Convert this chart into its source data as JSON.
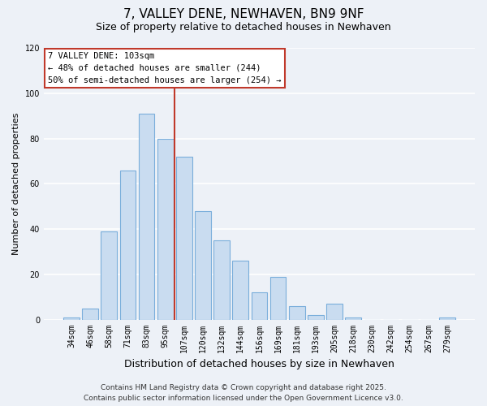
{
  "title": "7, VALLEY DENE, NEWHAVEN, BN9 9NF",
  "subtitle": "Size of property relative to detached houses in Newhaven",
  "xlabel": "Distribution of detached houses by size in Newhaven",
  "ylabel": "Number of detached properties",
  "categories": [
    "34sqm",
    "46sqm",
    "58sqm",
    "71sqm",
    "83sqm",
    "95sqm",
    "107sqm",
    "120sqm",
    "132sqm",
    "144sqm",
    "156sqm",
    "169sqm",
    "181sqm",
    "193sqm",
    "205sqm",
    "218sqm",
    "230sqm",
    "242sqm",
    "254sqm",
    "267sqm",
    "279sqm"
  ],
  "values": [
    1,
    5,
    39,
    66,
    91,
    80,
    72,
    48,
    35,
    26,
    12,
    19,
    6,
    2,
    7,
    1,
    0,
    0,
    0,
    0,
    1
  ],
  "bar_color": "#c9dcf0",
  "bar_edge_color": "#7aaedb",
  "highlight_index": 5,
  "highlight_edge_color": "#c0392b",
  "vline_x_data": 5.5,
  "ylim": [
    0,
    120
  ],
  "yticks": [
    0,
    20,
    40,
    60,
    80,
    100,
    120
  ],
  "annotation_title": "7 VALLEY DENE: 103sqm",
  "annotation_line1": "← 48% of detached houses are smaller (244)",
  "annotation_line2": "50% of semi-detached houses are larger (254) →",
  "annotation_box_color": "#ffffff",
  "annotation_box_edge": "#c0392b",
  "footer_line1": "Contains HM Land Registry data © Crown copyright and database right 2025.",
  "footer_line2": "Contains public sector information licensed under the Open Government Licence v3.0.",
  "background_color": "#edf1f7",
  "grid_color": "#ffffff",
  "title_fontsize": 11,
  "subtitle_fontsize": 9,
  "ylabel_fontsize": 8,
  "xlabel_fontsize": 9,
  "tick_fontsize": 7,
  "ann_fontsize": 7.5,
  "footer_fontsize": 6.5
}
